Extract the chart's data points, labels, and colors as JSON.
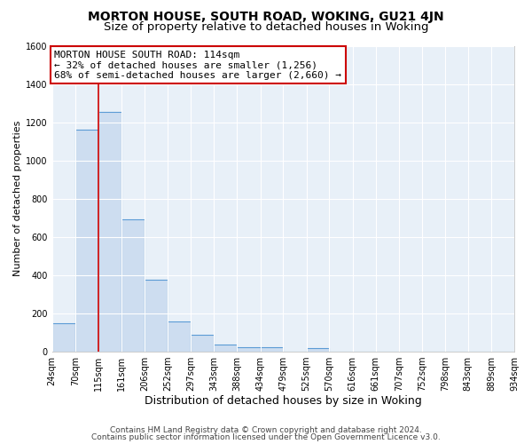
{
  "title": "MORTON HOUSE, SOUTH ROAD, WOKING, GU21 4JN",
  "subtitle": "Size of property relative to detached houses in Woking",
  "xlabel": "Distribution of detached houses by size in Woking",
  "ylabel": "Number of detached properties",
  "bar_edges": [
    24,
    70,
    115,
    161,
    206,
    252,
    297,
    343,
    388,
    434,
    479,
    525,
    570,
    616,
    661,
    707,
    752,
    798,
    843,
    889,
    934
  ],
  "bar_heights": [
    150,
    1160,
    1255,
    690,
    375,
    160,
    90,
    37,
    22,
    22,
    0,
    17,
    0,
    0,
    0,
    0,
    0,
    0,
    0,
    0
  ],
  "bar_color": "#cdddf0",
  "bar_edge_color": "#5b9bd5",
  "property_line_x": 115,
  "property_line_color": "#cc0000",
  "annotation_text": "MORTON HOUSE SOUTH ROAD: 114sqm\n← 32% of detached houses are smaller (1,256)\n68% of semi-detached houses are larger (2,660) →",
  "annotation_box_facecolor": "#ffffff",
  "annotation_box_edgecolor": "#cc0000",
  "ylim": [
    0,
    1600
  ],
  "yticks": [
    0,
    200,
    400,
    600,
    800,
    1000,
    1200,
    1400,
    1600
  ],
  "tick_labels": [
    "24sqm",
    "70sqm",
    "115sqm",
    "161sqm",
    "206sqm",
    "252sqm",
    "297sqm",
    "343sqm",
    "388sqm",
    "434sqm",
    "479sqm",
    "525sqm",
    "570sqm",
    "616sqm",
    "661sqm",
    "707sqm",
    "752sqm",
    "798sqm",
    "843sqm",
    "889sqm",
    "934sqm"
  ],
  "footer_line1": "Contains HM Land Registry data © Crown copyright and database right 2024.",
  "footer_line2": "Contains public sector information licensed under the Open Government Licence v3.0.",
  "fig_background_color": "#ffffff",
  "plot_background_color": "#e8f0f8",
  "grid_color": "#ffffff",
  "title_fontsize": 10,
  "subtitle_fontsize": 9.5,
  "xlabel_fontsize": 9,
  "ylabel_fontsize": 8,
  "tick_fontsize": 7,
  "annotation_fontsize": 8,
  "footer_fontsize": 6.5
}
